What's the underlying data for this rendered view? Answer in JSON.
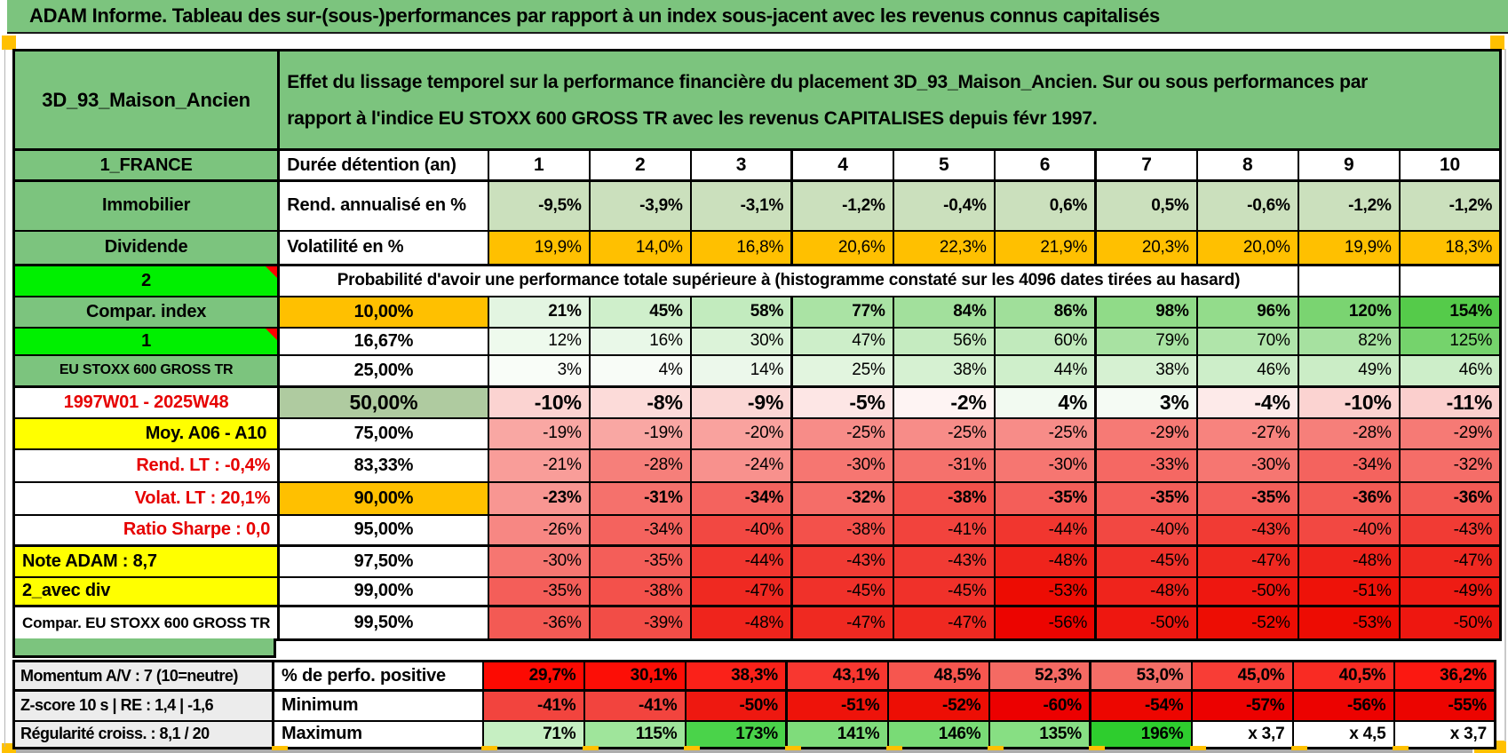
{
  "title": "ADAM Informe. Tableau des sur-(sous-)performances par rapport à un index sous-jacent avec les revenus connus capitalisés",
  "sheet": {
    "name": "3D_93_Maison_Ancien",
    "description": "Effet du lissage temporel sur la performance financière du placement 3D_93_Maison_Ancien. Sur ou sous performances par\nrapport à l'indice EU STOXX 600 GROSS TR avec les revenus CAPITALISES depuis févr 1997."
  },
  "colors": {
    "header_green": "#7CC47E",
    "bright_green": "#00F000",
    "sage_green": "#AFCBA0",
    "light_green": "#CBE0BD",
    "orange": "#FFC000",
    "yellow": "#FFFF00",
    "red_text": "#E60000",
    "gray_label": "#ECECEC",
    "corner_marker": "#FFC000",
    "comment_marker": "#FF0000"
  },
  "probability_note": "Probabilité d'avoir une performance totale supérieure à (histogramme constaté sur les 4096 dates tirées au hasard)",
  "rows": [
    {
      "label": "1_FRANCE",
      "metric": "Durée détention (an)",
      "values": [
        "1",
        "2",
        "3",
        "4",
        "5",
        "6",
        "7",
        "8",
        "9",
        "10"
      ],
      "bgs": null
    },
    {
      "label": "Immobilier",
      "metric": "Rend. annualisé en %",
      "values": [
        "-9,5%",
        "-3,9%",
        "-3,1%",
        "-1,2%",
        "-0,4%",
        "0,6%",
        "0,5%",
        "-0,6%",
        "-1,2%",
        "-1,2%"
      ],
      "bgs": [
        "#CBE0BD",
        "#CBE0BD",
        "#CBE0BD",
        "#CBE0BD",
        "#CBE0BD",
        "#CBE0BD",
        "#CBE0BD",
        "#CBE0BD",
        "#CBE0BD",
        "#CBE0BD"
      ]
    },
    {
      "label": "Dividende",
      "metric": "Volatilité en %",
      "values": [
        "19,9%",
        "14,0%",
        "16,8%",
        "20,6%",
        "22,3%",
        "21,9%",
        "20,3%",
        "20,0%",
        "19,9%",
        "18,3%"
      ],
      "bgs": [
        "#FFC000",
        "#FFC000",
        "#FFC000",
        "#FFC000",
        "#FFC000",
        "#FFC000",
        "#FFC000",
        "#FFC000",
        "#FFC000",
        "#FFC000"
      ]
    },
    {
      "label": "2",
      "merged_note": true,
      "values": [
        "",
        ""
      ],
      "bgs": null
    },
    {
      "label": "Compar. index",
      "metric": "10,00%",
      "values": [
        "21%",
        "45%",
        "58%",
        "77%",
        "84%",
        "86%",
        "98%",
        "96%",
        "120%",
        "154%"
      ],
      "bgs": [
        "#E3F5E1",
        "#CFEFCB",
        "#C2EBBE",
        "#AAE3A4",
        "#A2E09C",
        "#A0DF9A",
        "#90DB88",
        "#93DC8B",
        "#7AD471",
        "#55CB4A"
      ]
    },
    {
      "label": "1",
      "metric": "16,67%",
      "values": [
        "12%",
        "16%",
        "30%",
        "47%",
        "56%",
        "60%",
        "79%",
        "70%",
        "82%",
        "125%"
      ],
      "bgs": [
        "#EEFAED",
        "#E9F8E8",
        "#DCF3D9",
        "#CDEEC9",
        "#C5EBC0",
        "#C1EABC",
        "#A8E2A2",
        "#B0E5AA",
        "#A6E1A0",
        "#75D36C"
      ]
    },
    {
      "label": "EU STOXX 600 GROSS TR",
      "metric": "25,00%",
      "values": [
        "3%",
        "4%",
        "14%",
        "25%",
        "38%",
        "44%",
        "38%",
        "46%",
        "49%",
        "46%"
      ],
      "bgs": [
        "#F9FDF8",
        "#F8FCF7",
        "#ECF8EB",
        "#E2F5DF",
        "#D6F1D2",
        "#CFEFCB",
        "#D6F1D2",
        "#CDEEC9",
        "#CBEDC6",
        "#CDEEC9"
      ]
    },
    {
      "label": "1997W01 - 2025W48",
      "metric": "50,00%",
      "values": [
        "-10%",
        "-8%",
        "-9%",
        "-5%",
        "-2%",
        "4%",
        "3%",
        "-4%",
        "-10%",
        "-11%"
      ],
      "bgs": [
        "#FBD3D1",
        "#FCDBD9",
        "#FBD7D5",
        "#FDE6E5",
        "#FEF4F3",
        "#F2FAF1",
        "#F5FBF4",
        "#FDEAE9",
        "#FBD3D1",
        "#FBCFCD"
      ]
    },
    {
      "label": "Moy. A06 - A10",
      "metric": "75,00%",
      "values": [
        "-19%",
        "-19%",
        "-20%",
        "-25%",
        "-25%",
        "-25%",
        "-29%",
        "-27%",
        "-28%",
        "-29%"
      ],
      "bgs": [
        "#F9A7A3",
        "#F9A7A3",
        "#F9A29E",
        "#F78C88",
        "#F78C88",
        "#F78C88",
        "#F67A75",
        "#F7837E",
        "#F67F7A",
        "#F67A75"
      ]
    },
    {
      "label": "Rend. LT :    -0,4%",
      "metric": "83,33%",
      "values": [
        "-21%",
        "-28%",
        "-24%",
        "-30%",
        "-31%",
        "-30%",
        "-33%",
        "-30%",
        "-34%",
        "-32%"
      ],
      "bgs": [
        "#F99D99",
        "#F67F7A",
        "#F8918D",
        "#F67671",
        "#F5716C",
        "#F67671",
        "#F56863",
        "#F67671",
        "#F4635E",
        "#F56D68"
      ]
    },
    {
      "label": "Volat. LT :    20,1%",
      "metric": "90,00%",
      "values": [
        "-23%",
        "-31%",
        "-34%",
        "-32%",
        "-38%",
        "-35%",
        "-35%",
        "-35%",
        "-36%",
        "-36%"
      ],
      "bgs": [
        "#F89692",
        "#F5716C",
        "#F4635E",
        "#F56D68",
        "#F3514B",
        "#F45E59",
        "#F45E59",
        "#F45E59",
        "#F35A54",
        "#F35A54"
      ]
    },
    {
      "label": "Ratio Sharpe :    0,0",
      "metric": "95,00%",
      "values": [
        "-26%",
        "-34%",
        "-40%",
        "-38%",
        "-41%",
        "-44%",
        "-40%",
        "-43%",
        "-40%",
        "-43%"
      ],
      "bgs": [
        "#F78783",
        "#F4635E",
        "#F24842",
        "#F3514B",
        "#F2433D",
        "#F1362F",
        "#F24842",
        "#F13B34",
        "#F24842",
        "#F13B34"
      ]
    },
    {
      "label": "Note ADAM : 8,7",
      "metric": "97,50%",
      "values": [
        "-30%",
        "-35%",
        "-44%",
        "-43%",
        "-43%",
        "-48%",
        "-45%",
        "-47%",
        "-48%",
        "-47%"
      ],
      "bgs": [
        "#F67671",
        "#F45E59",
        "#F1362F",
        "#F13B34",
        "#F13B34",
        "#EF241C",
        "#F0312A",
        "#EF2921",
        "#EF241C",
        "#EF2921"
      ]
    },
    {
      "label": "2_avec div",
      "metric": "99,00%",
      "values": [
        "-35%",
        "-38%",
        "-47%",
        "-45%",
        "-45%",
        "-53%",
        "-48%",
        "-50%",
        "-51%",
        "-49%"
      ],
      "bgs": [
        "#F45E59",
        "#F3514B",
        "#EF2921",
        "#F0312A",
        "#F0312A",
        "#ED0C03",
        "#EF241C",
        "#EE1710",
        "#EE1209",
        "#EE1C14"
      ]
    },
    {
      "label": "Compar. EU STOXX 600 GROSS TR",
      "metric": "99,50%",
      "values": [
        "-36%",
        "-39%",
        "-48%",
        "-47%",
        "-47%",
        "-56%",
        "-50%",
        "-52%",
        "-53%",
        "-50%"
      ],
      "bgs": [
        "#F35A54",
        "#F24D47",
        "#EF241C",
        "#EF2921",
        "#EF2921",
        "#EC0400",
        "#EE1710",
        "#ED0D04",
        "#ED0C03",
        "#EE1710"
      ]
    }
  ],
  "bottom_rows": [
    {
      "label": "Momentum A/V : 7 (10=neutre)",
      "metric": "% de perfo. positive",
      "values": [
        "29,7%",
        "30,1%",
        "38,3%",
        "43,1%",
        "48,5%",
        "52,3%",
        "53,0%",
        "45,0%",
        "40,5%",
        "36,2%"
      ],
      "bgs": [
        "#FC0A02",
        "#FC0E06",
        "#FA2119",
        "#F83730",
        "#F6564F",
        "#F46A63",
        "#F46D66",
        "#F83D36",
        "#F92B23",
        "#FB1811"
      ]
    },
    {
      "label": "Z-score 10 s | RE : 1,4 | -1,6",
      "metric": "Minimum",
      "values": [
        "-41%",
        "-41%",
        "-50%",
        "-51%",
        "-52%",
        "-60%",
        "-54%",
        "-57%",
        "-56%",
        "-55%"
      ],
      "bgs": [
        "#F2443E",
        "#F2443E",
        "#EE1810",
        "#EE130A",
        "#ED0E05",
        "#EC0000",
        "#ED0600",
        "#EC0100",
        "#EC0200",
        "#EC0400"
      ]
    },
    {
      "label": "Régularité croiss. : 8,1 / 20",
      "metric": "Maximum",
      "values": [
        "71%",
        "115%",
        "173%",
        "141%",
        "146%",
        "135%",
        "196%",
        "x 3,7",
        "x 4,5",
        "x 3,7"
      ],
      "bgs": [
        "#C6EFC2",
        "#9FE59B",
        "#4AD34A",
        "#7FDC7B",
        "#79DB76",
        "#87DF83",
        "#2ECD2E",
        "#FFFFFF",
        "#FFFFFF",
        "#FFFFFF"
      ]
    }
  ]
}
